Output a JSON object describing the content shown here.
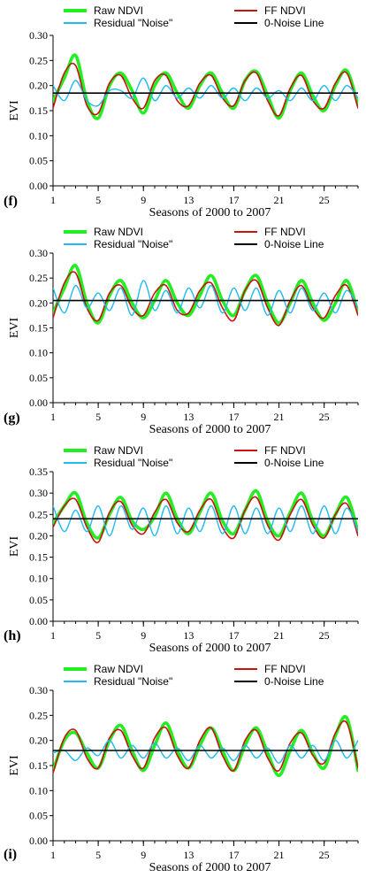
{
  "figure": {
    "panels": [
      "(f)",
      "(g)",
      "(h)",
      "(i)"
    ]
  },
  "legend_labels": [
    "Raw NDVI",
    "FF NDVI",
    "Residual \"Noise\"",
    "0-Noise Line"
  ],
  "colors": {
    "raw": "#22ee22",
    "ff": "#cc1111",
    "residual": "#22bbee",
    "zero": "#000000"
  },
  "chart_data": [
    {
      "type": "line",
      "panel_label": "(f)",
      "xlabel": "Seasons of 2000 to 2007",
      "ylabel": "EVI",
      "xlim": [
        1,
        28
      ],
      "ylim": [
        0,
        0.3
      ],
      "xticks": [
        1,
        5,
        9,
        13,
        17,
        21,
        25
      ],
      "yticks": [
        "0.00",
        "0.05",
        "0.10",
        "0.15",
        "0.20",
        "0.25",
        "0.30"
      ],
      "zero_noise": 0.185,
      "series": [
        {
          "name": "Raw NDVI",
          "style": "raw",
          "x": [
            1,
            2,
            3,
            4,
            5,
            6,
            7,
            8,
            9,
            10,
            11,
            12,
            13,
            14,
            15,
            16,
            17,
            18,
            19,
            20,
            21,
            22,
            23,
            24,
            25,
            26,
            27,
            28
          ],
          "y": [
            0.17,
            0.215,
            0.26,
            0.17,
            0.135,
            0.2,
            0.225,
            0.19,
            0.145,
            0.2,
            0.225,
            0.185,
            0.155,
            0.2,
            0.225,
            0.185,
            0.155,
            0.21,
            0.228,
            0.18,
            0.135,
            0.19,
            0.225,
            0.18,
            0.15,
            0.2,
            0.23,
            0.16
          ]
        },
        {
          "name": "FF NDVI",
          "style": "ff",
          "x": [
            1,
            2,
            3,
            4,
            5,
            6,
            7,
            8,
            9,
            10,
            11,
            12,
            13,
            14,
            15,
            16,
            17,
            18,
            19,
            20,
            21,
            22,
            23,
            24,
            25,
            26,
            27,
            28
          ],
          "y": [
            0.155,
            0.225,
            0.24,
            0.16,
            0.145,
            0.205,
            0.22,
            0.175,
            0.155,
            0.21,
            0.22,
            0.17,
            0.16,
            0.205,
            0.22,
            0.175,
            0.16,
            0.21,
            0.225,
            0.17,
            0.14,
            0.195,
            0.22,
            0.17,
            0.155,
            0.205,
            0.225,
            0.155
          ]
        },
        {
          "name": "Residual \"Noise\"",
          "style": "residual",
          "x": [
            1,
            2,
            3,
            4,
            5,
            6,
            7,
            8,
            9,
            10,
            11,
            12,
            13,
            14,
            15,
            16,
            17,
            18,
            19,
            20,
            21,
            22,
            23,
            24,
            25,
            26,
            27,
            28
          ],
          "y": [
            0.2,
            0.17,
            0.21,
            0.17,
            0.16,
            0.19,
            0.19,
            0.175,
            0.215,
            0.17,
            0.2,
            0.175,
            0.195,
            0.175,
            0.2,
            0.175,
            0.195,
            0.17,
            0.195,
            0.175,
            0.19,
            0.17,
            0.195,
            0.17,
            0.2,
            0.17,
            0.2,
            0.175
          ]
        },
        {
          "name": "0-Noise Line",
          "style": "zero",
          "x": [
            1,
            28
          ],
          "y": [
            0.185,
            0.185
          ]
        }
      ]
    },
    {
      "type": "line",
      "panel_label": "(g)",
      "xlabel": "Seasons of 2000 to 2007",
      "ylabel": "EVI",
      "xlim": [
        1,
        28
      ],
      "ylim": [
        0,
        0.3
      ],
      "xticks": [
        1,
        5,
        9,
        13,
        17,
        21,
        25
      ],
      "yticks": [
        "0.00",
        "0.05",
        "0.10",
        "0.15",
        "0.20",
        "0.25",
        "0.30"
      ],
      "zero_noise": 0.205,
      "series": [
        {
          "name": "Raw NDVI",
          "style": "raw",
          "x": [
            1,
            2,
            3,
            4,
            5,
            6,
            7,
            8,
            9,
            10,
            11,
            12,
            13,
            14,
            15,
            16,
            17,
            18,
            19,
            20,
            21,
            22,
            23,
            24,
            25,
            26,
            27,
            28
          ],
          "y": [
            0.18,
            0.23,
            0.275,
            0.2,
            0.16,
            0.215,
            0.245,
            0.2,
            0.17,
            0.205,
            0.245,
            0.2,
            0.175,
            0.215,
            0.255,
            0.205,
            0.175,
            0.225,
            0.255,
            0.2,
            0.16,
            0.2,
            0.245,
            0.2,
            0.165,
            0.2,
            0.245,
            0.18
          ]
        },
        {
          "name": "FF NDVI",
          "style": "ff",
          "x": [
            1,
            2,
            3,
            4,
            5,
            6,
            7,
            8,
            9,
            10,
            11,
            12,
            13,
            14,
            15,
            16,
            17,
            18,
            19,
            20,
            21,
            22,
            23,
            24,
            25,
            26,
            27,
            28
          ],
          "y": [
            0.17,
            0.24,
            0.26,
            0.19,
            0.165,
            0.22,
            0.235,
            0.19,
            0.175,
            0.22,
            0.235,
            0.185,
            0.18,
            0.225,
            0.24,
            0.19,
            0.165,
            0.225,
            0.245,
            0.19,
            0.155,
            0.205,
            0.235,
            0.19,
            0.17,
            0.215,
            0.235,
            0.175
          ]
        },
        {
          "name": "Residual \"Noise\"",
          "style": "residual",
          "x": [
            1,
            2,
            3,
            4,
            5,
            6,
            7,
            8,
            9,
            10,
            11,
            12,
            13,
            14,
            15,
            16,
            17,
            18,
            19,
            20,
            21,
            22,
            23,
            24,
            25,
            26,
            27,
            28
          ],
          "y": [
            0.23,
            0.18,
            0.235,
            0.19,
            0.22,
            0.185,
            0.23,
            0.175,
            0.245,
            0.185,
            0.225,
            0.18,
            0.23,
            0.19,
            0.235,
            0.18,
            0.23,
            0.185,
            0.23,
            0.175,
            0.225,
            0.18,
            0.23,
            0.185,
            0.22,
            0.18,
            0.225,
            0.19
          ]
        },
        {
          "name": "0-Noise Line",
          "style": "zero",
          "x": [
            1,
            28
          ],
          "y": [
            0.205,
            0.205
          ]
        }
      ]
    },
    {
      "type": "line",
      "panel_label": "(h)",
      "xlabel": "Seasons of 2000 to 2007",
      "ylabel": "EVI",
      "xlim": [
        1,
        28
      ],
      "ylim": [
        0,
        0.35
      ],
      "xticks": [
        1,
        5,
        9,
        13,
        17,
        21,
        25
      ],
      "yticks": [
        "0.00",
        "0.05",
        "0.10",
        "0.15",
        "0.20",
        "0.25",
        "0.30",
        "0.35"
      ],
      "zero_noise": 0.24,
      "series": [
        {
          "name": "Raw NDVI",
          "style": "raw",
          "x": [
            1,
            2,
            3,
            4,
            5,
            6,
            7,
            8,
            9,
            10,
            11,
            12,
            13,
            14,
            15,
            16,
            17,
            18,
            19,
            20,
            21,
            22,
            23,
            24,
            25,
            26,
            27,
            28
          ],
          "y": [
            0.23,
            0.27,
            0.3,
            0.23,
            0.195,
            0.25,
            0.29,
            0.235,
            0.215,
            0.245,
            0.3,
            0.24,
            0.205,
            0.255,
            0.3,
            0.235,
            0.205,
            0.26,
            0.305,
            0.235,
            0.2,
            0.255,
            0.3,
            0.235,
            0.2,
            0.25,
            0.29,
            0.21
          ]
        },
        {
          "name": "FF NDVI",
          "style": "ff",
          "x": [
            1,
            2,
            3,
            4,
            5,
            6,
            7,
            8,
            9,
            10,
            11,
            12,
            13,
            14,
            15,
            16,
            17,
            18,
            19,
            20,
            21,
            22,
            23,
            24,
            25,
            26,
            27,
            28
          ],
          "y": [
            0.22,
            0.27,
            0.285,
            0.22,
            0.185,
            0.255,
            0.28,
            0.225,
            0.205,
            0.255,
            0.285,
            0.23,
            0.21,
            0.26,
            0.285,
            0.22,
            0.195,
            0.26,
            0.29,
            0.225,
            0.19,
            0.25,
            0.285,
            0.225,
            0.195,
            0.25,
            0.275,
            0.2
          ]
        },
        {
          "name": "Residual \"Noise\"",
          "style": "residual",
          "x": [
            1,
            2,
            3,
            4,
            5,
            6,
            7,
            8,
            9,
            10,
            11,
            12,
            13,
            14,
            15,
            16,
            17,
            18,
            19,
            20,
            21,
            22,
            23,
            24,
            25,
            26,
            27,
            28
          ],
          "y": [
            0.27,
            0.21,
            0.26,
            0.21,
            0.27,
            0.2,
            0.27,
            0.215,
            0.265,
            0.2,
            0.27,
            0.205,
            0.265,
            0.21,
            0.27,
            0.205,
            0.27,
            0.205,
            0.265,
            0.205,
            0.265,
            0.21,
            0.27,
            0.205,
            0.27,
            0.205,
            0.265,
            0.21
          ]
        },
        {
          "name": "0-Noise Line",
          "style": "zero",
          "x": [
            1,
            28
          ],
          "y": [
            0.24,
            0.24
          ]
        }
      ]
    },
    {
      "type": "line",
      "panel_label": "(i)",
      "xlabel": "Seasons of 2000 to 2007",
      "ylabel": "EVI",
      "xlim": [
        1,
        28
      ],
      "ylim": [
        0,
        0.3
      ],
      "xticks": [
        1,
        5,
        9,
        13,
        17,
        21,
        25
      ],
      "yticks": [
        "0.00",
        "0.05",
        "0.10",
        "0.15",
        "0.20",
        "0.25",
        "0.30"
      ],
      "zero_noise": 0.18,
      "series": [
        {
          "name": "Raw NDVI",
          "style": "raw",
          "x": [
            1,
            2,
            3,
            4,
            5,
            6,
            7,
            8,
            9,
            10,
            11,
            12,
            13,
            14,
            15,
            16,
            17,
            18,
            19,
            20,
            21,
            22,
            23,
            24,
            25,
            26,
            27,
            28
          ],
          "y": [
            0.14,
            0.2,
            0.215,
            0.175,
            0.145,
            0.2,
            0.23,
            0.18,
            0.14,
            0.19,
            0.235,
            0.18,
            0.145,
            0.19,
            0.225,
            0.18,
            0.14,
            0.19,
            0.225,
            0.175,
            0.13,
            0.18,
            0.22,
            0.175,
            0.145,
            0.21,
            0.245,
            0.14
          ]
        },
        {
          "name": "FF NDVI",
          "style": "ff",
          "x": [
            1,
            2,
            3,
            4,
            5,
            6,
            7,
            8,
            9,
            10,
            11,
            12,
            13,
            14,
            15,
            16,
            17,
            18,
            19,
            20,
            21,
            22,
            23,
            24,
            25,
            26,
            27,
            28
          ],
          "y": [
            0.135,
            0.205,
            0.22,
            0.165,
            0.145,
            0.205,
            0.22,
            0.17,
            0.145,
            0.205,
            0.225,
            0.17,
            0.145,
            0.2,
            0.225,
            0.17,
            0.14,
            0.2,
            0.22,
            0.165,
            0.14,
            0.195,
            0.215,
            0.17,
            0.155,
            0.215,
            0.235,
            0.145
          ]
        },
        {
          "name": "Residual \"Noise\"",
          "style": "residual",
          "x": [
            1,
            2,
            3,
            4,
            5,
            6,
            7,
            8,
            9,
            10,
            11,
            12,
            13,
            14,
            15,
            16,
            17,
            18,
            19,
            20,
            21,
            22,
            23,
            24,
            25,
            26,
            27,
            28
          ],
          "y": [
            0.175,
            0.18,
            0.16,
            0.185,
            0.17,
            0.2,
            0.165,
            0.19,
            0.165,
            0.195,
            0.165,
            0.185,
            0.16,
            0.19,
            0.165,
            0.185,
            0.16,
            0.19,
            0.165,
            0.185,
            0.155,
            0.19,
            0.165,
            0.19,
            0.16,
            0.2,
            0.165,
            0.2
          ]
        },
        {
          "name": "0-Noise Line",
          "style": "zero",
          "x": [
            1,
            28
          ],
          "y": [
            0.18,
            0.18
          ]
        }
      ]
    }
  ]
}
